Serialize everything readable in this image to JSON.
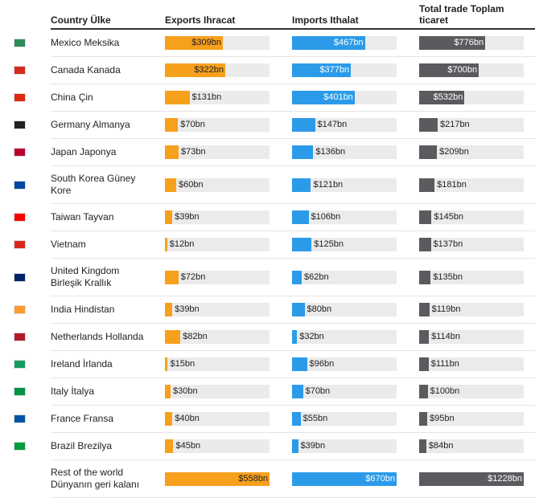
{
  "table": {
    "columns": [
      "Country Ülke",
      "Exports Ihracat",
      "Imports Ithalat",
      "Total trade Toplam ticaret"
    ],
    "colors": [
      "#f7a01c",
      "#2b9be9",
      "#5a5b5e"
    ],
    "rows": [
      {
        "country": "Mexico Meksika",
        "values": [
          309,
          467,
          776
        ],
        "value_labels": [
          "$309bn",
          "$467bn",
          "$776bn"
        ]
      },
      {
        "country": "Canada Kanada",
        "values": [
          322,
          377,
          700
        ],
        "value_labels": [
          "$322bn",
          "$377bn",
          "$700bn"
        ]
      },
      {
        "country": "China Çin",
        "values": [
          131,
          401,
          532
        ],
        "value_labels": [
          "$131bn",
          "$401bn",
          "$532bn"
        ]
      },
      {
        "country": "Germany Almanya",
        "values": [
          70,
          147,
          217
        ],
        "value_labels": [
          "$70bn",
          "$147bn",
          "$217bn"
        ]
      },
      {
        "country": "Japan Japonya",
        "values": [
          73,
          136,
          209
        ],
        "value_labels": [
          "$73bn",
          "$136bn",
          "$209bn"
        ]
      },
      {
        "country": "South Korea Güney Kore",
        "values": [
          60,
          121,
          181
        ],
        "value_labels": [
          "$60bn",
          "$121bn",
          "$181bn"
        ]
      },
      {
        "country": "Taiwan Tayvan",
        "values": [
          39,
          106,
          145
        ],
        "value_labels": [
          "$39bn",
          "$106bn",
          "$145bn"
        ]
      },
      {
        "country": "Vietnam",
        "values": [
          12,
          125,
          137
        ],
        "value_labels": [
          "$12bn",
          "$125bn",
          "$137bn"
        ]
      },
      {
        "country": "United Kingdom Birleşik Krallık",
        "values": [
          72,
          62,
          135
        ],
        "value_labels": [
          "$72bn",
          "$62bn",
          "$135bn"
        ]
      },
      {
        "country": "India Hindistan",
        "values": [
          39,
          80,
          119
        ],
        "value_labels": [
          "$39bn",
          "$80bn",
          "$119bn"
        ]
      },
      {
        "country": "Netherlands Hollanda",
        "values": [
          82,
          32,
          114
        ],
        "value_labels": [
          "$82bn",
          "$32bn",
          "$114bn"
        ]
      },
      {
        "country": "Ireland İrlanda",
        "values": [
          15,
          96,
          111
        ],
        "value_labels": [
          "$15bn",
          "$96bn",
          "$111bn"
        ]
      },
      {
        "country": "Italy İtalya",
        "values": [
          30,
          70,
          100
        ],
        "value_labels": [
          "$30bn",
          "$70bn",
          "$100bn"
        ]
      },
      {
        "country": "France Fransa",
        "values": [
          40,
          55,
          95
        ],
        "value_labels": [
          "$40bn",
          "$55bn",
          "$95bn"
        ]
      },
      {
        "country": "Brazil Brezilya",
        "values": [
          45,
          39,
          84
        ],
        "value_labels": [
          "$45bn",
          "$39bn",
          "$84bn"
        ]
      },
      {
        "country": "Rest of the world Dünyanın geri kalanı",
        "values": [
          558,
          670,
          1228
        ],
        "value_labels": [
          "$558bn",
          "$670bn",
          "$1228bn"
        ]
      }
    ]
  }
}
